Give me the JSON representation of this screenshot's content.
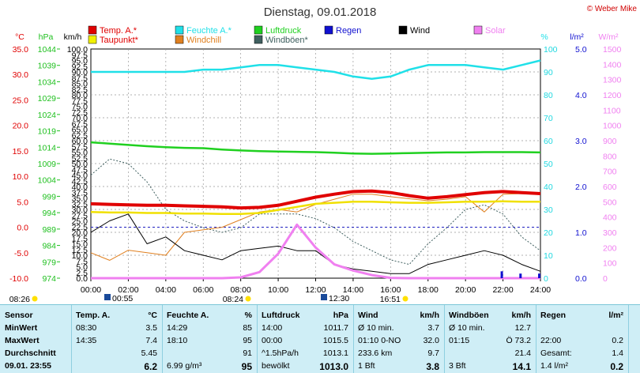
{
  "title": "Dienstag, 09.01.2018",
  "copyright": "© Weber Mike",
  "legend": [
    {
      "label": "Temp. A.*",
      "color": "#e00000"
    },
    {
      "label": "Feuchte A.*",
      "color": "#20e0e8"
    },
    {
      "label": "Luftdruck",
      "color": "#20d020"
    },
    {
      "label": "Regen",
      "color": "#1010d0"
    },
    {
      "label": "Wind",
      "color": "#000000"
    },
    {
      "label": "Solar",
      "color": "#f080f0"
    },
    {
      "label": "Taupunkt*",
      "color": "#f0f000"
    },
    {
      "label": "Windchill",
      "color": "#e08020"
    },
    {
      "label": "Windböen*",
      "color": "#406060"
    }
  ],
  "units": {
    "temp": "°C",
    "pressure": "hPa",
    "wind": "km/h",
    "humidity": "%",
    "rain": "l/m²",
    "solar": "W/m²"
  },
  "sun": {
    "sunrise": "08:26",
    "sunset": "16:51",
    "moonrise": "00:55",
    "moonset": "12:30",
    "noon_marker": "08:24"
  },
  "chart_data": {
    "type": "line",
    "x": [
      0,
      1,
      2,
      3,
      4,
      5,
      6,
      7,
      8,
      9,
      10,
      11,
      12,
      13,
      14,
      15,
      16,
      17,
      18,
      19,
      20,
      21,
      22,
      23,
      24
    ],
    "x_ticks": [
      "00:00",
      "02:00",
      "04:00",
      "06:00",
      "08:00",
      "10:00",
      "12:00",
      "14:00",
      "16:00",
      "18:00",
      "20:00",
      "22:00",
      "24:00"
    ],
    "axes": {
      "temp_ticks": [
        "35.0",
        "30.0",
        "25.0",
        "20.0",
        "15.0",
        "10.0",
        "5.0",
        "0.0",
        "-5.0",
        "-10.0"
      ],
      "pressure_ticks": [
        "1044",
        "1039",
        "1034",
        "1029",
        "1024",
        "1019",
        "1014",
        "1009",
        "1004",
        "999",
        "994",
        "989",
        "984",
        "979",
        "974"
      ],
      "wind_ticks": [
        "100.0",
        "97.5",
        "95.0",
        "92.5",
        "90.0",
        "87.5",
        "85.0",
        "82.5",
        "80.0",
        "77.5",
        "75.0",
        "72.5",
        "70.0",
        "67.5",
        "65.0",
        "62.5",
        "60.0",
        "57.5",
        "55.0",
        "52.5",
        "50.0",
        "47.5",
        "45.0",
        "42.5",
        "40.0",
        "37.5",
        "35.0",
        "32.5",
        "30.0",
        "27.5",
        "25.0",
        "22.5",
        "20.0",
        "17.5",
        "15.0",
        "12.5",
        "10.0",
        "7.5",
        "5.0",
        "2.5",
        "0.0"
      ],
      "humidity_ticks": [
        "100",
        "90",
        "80",
        "70",
        "60",
        "50",
        "40",
        "30",
        "20",
        "10",
        "0"
      ],
      "rain_ticks": [
        "5.0",
        "4.0",
        "3.0",
        "2.0",
        "1.0",
        "0.0"
      ],
      "solar_ticks": [
        "1500",
        "1400",
        "1300",
        "1200",
        "1100",
        "1000",
        "900",
        "800",
        "700",
        "600",
        "500",
        "400",
        "300",
        "200",
        "100",
        "0"
      ],
      "temp_range": [
        -10,
        35
      ],
      "wind_range": [
        0,
        100
      ],
      "humidity_range": [
        0,
        100
      ],
      "rain_range": [
        0,
        5
      ],
      "solar_range": [
        0,
        1500
      ]
    },
    "series": [
      {
        "name": "Temp. A.*",
        "axis": "temp",
        "values": [
          4.6,
          4.5,
          4.4,
          4.3,
          4.3,
          4.2,
          4.1,
          4.0,
          3.8,
          3.9,
          4.3,
          5.1,
          5.9,
          6.5,
          7.0,
          7.1,
          6.8,
          6.2,
          5.7,
          6.0,
          6.4,
          6.8,
          7.0,
          6.8,
          6.6
        ]
      },
      {
        "name": "Taupunkt*",
        "axis": "temp",
        "values": [
          3.0,
          2.9,
          2.9,
          2.8,
          2.8,
          2.7,
          2.7,
          2.6,
          2.6,
          2.8,
          3.4,
          4.0,
          4.6,
          4.8,
          5.0,
          5.0,
          4.9,
          4.8,
          4.8,
          4.9,
          5.0,
          5.0,
          5.1,
          5.0,
          5.0
        ]
      },
      {
        "name": "Feuchte A.*",
        "axis": "humidity",
        "values": [
          90,
          90,
          90,
          90,
          90,
          90,
          91,
          91,
          92,
          93,
          93,
          92,
          91,
          90,
          88,
          87,
          88,
          91,
          93,
          93,
          93,
          92,
          91,
          93,
          95
        ]
      },
      {
        "name": "Luftdruck",
        "axis": "pressure",
        "values": [
          1015.5,
          1015.1,
          1014.7,
          1014.3,
          1014.0,
          1013.8,
          1013.7,
          1013.3,
          1013.0,
          1012.8,
          1012.7,
          1012.6,
          1012.5,
          1012.3,
          1012.1,
          1012.0,
          1012.1,
          1012.2,
          1012.3,
          1012.4,
          1012.4,
          1012.5,
          1012.5,
          1012.5,
          1012.4
        ]
      },
      {
        "name": "Windchill",
        "axis": "temp",
        "values": [
          -5.0,
          -6.5,
          -4.5,
          -5.0,
          -5.5,
          -1.0,
          -0.5,
          0.0,
          1.5,
          3.0,
          3.5,
          3.0,
          4.5,
          5.5,
          6.5,
          6.5,
          6.0,
          5.6,
          5.2,
          5.5,
          6.0,
          3.0,
          6.5,
          6.6,
          6.4
        ]
      },
      {
        "name": "Wind",
        "axis": "wind",
        "values": [
          20,
          25,
          28,
          15,
          18,
          12,
          10,
          8,
          12,
          13,
          14,
          12,
          12,
          6,
          4,
          3,
          2,
          2,
          6,
          8,
          10,
          12,
          10,
          6,
          3
        ]
      },
      {
        "name": "Windböen*",
        "axis": "wind",
        "values": [
          45,
          52,
          50,
          42,
          30,
          25,
          22,
          20,
          22,
          28,
          28,
          28,
          26,
          22,
          16,
          12,
          8,
          6,
          15,
          22,
          30,
          32,
          28,
          18,
          12
        ]
      },
      {
        "name": "Solar",
        "axis": "solar",
        "values": [
          0,
          0,
          0,
          0,
          0,
          0,
          0,
          0,
          5,
          40,
          160,
          350,
          200,
          90,
          50,
          20,
          2,
          0,
          0,
          0,
          0,
          0,
          0,
          0,
          0
        ]
      },
      {
        "name": "Regen",
        "axis": "rain",
        "values": [
          0,
          0,
          0,
          0,
          0,
          0,
          0,
          0,
          0,
          0,
          0,
          0,
          0,
          0,
          0,
          0,
          0,
          0,
          0,
          0,
          0,
          0,
          0.15,
          0.1,
          0.1
        ]
      }
    ]
  },
  "table": {
    "columns": [
      {
        "rows": [
          "Sensor",
          "MinWert",
          "MaxWert",
          "Durchschnitt",
          "09.01. 23:55"
        ]
      },
      {
        "head": "Temp. A.",
        "unit": "°C",
        "rows": [
          [
            "08:30",
            "3.5"
          ],
          [
            "14:35",
            "7.4"
          ],
          [
            "",
            "5.45"
          ],
          [
            "",
            "6.2"
          ]
        ]
      },
      {
        "head": "Feuchte A.",
        "unit": "%",
        "rows": [
          [
            "14:29",
            "85"
          ],
          [
            "18:10",
            "95"
          ],
          [
            "",
            "91"
          ],
          [
            "6.99 g/m³",
            "95"
          ]
        ]
      },
      {
        "head": "Luftdruck",
        "unit": "hPa",
        "rows": [
          [
            "14:00",
            "1011.7"
          ],
          [
            "00:00",
            "1015.5"
          ],
          [
            "^1.5hPa/h",
            "1013.1"
          ],
          [
            "bewölkt",
            "1013.0"
          ]
        ]
      },
      {
        "head": "Wind",
        "unit": "km/h",
        "rows": [
          [
            "Ø 10 min.",
            "3.7"
          ],
          [
            "01:10   0-NO",
            "32.0"
          ],
          [
            "233.6 km",
            "9.7"
          ],
          [
            "1 Bft",
            "3.8"
          ]
        ]
      },
      {
        "head": "Windböen",
        "unit": "km/h",
        "rows": [
          [
            "Ø 10 min.",
            "12.7"
          ],
          [
            "01:15",
            "Ö 73.2"
          ],
          [
            "",
            "21.4"
          ],
          [
            "3 Bft",
            "14.1"
          ]
        ]
      },
      {
        "head": "Regen",
        "unit": "l/m²",
        "rows": [
          [
            "",
            ""
          ],
          [
            "22:00",
            "0.2"
          ],
          [
            "Gesamt:",
            "1.4"
          ],
          [
            "1.4 l/m²",
            "0.2"
          ]
        ]
      }
    ]
  }
}
